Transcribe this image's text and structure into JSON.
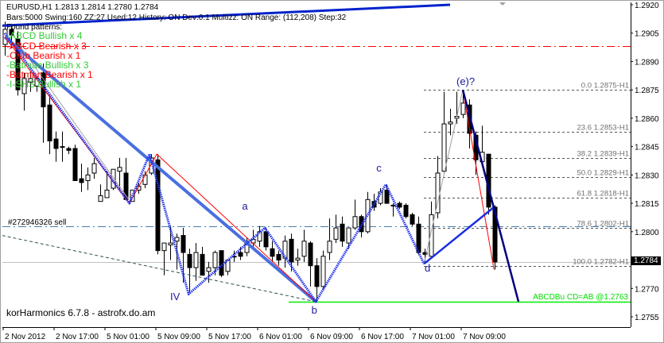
{
  "header": {
    "symbol_line": "EURUSD,H1  1.2813 1.2814 1.2780 1.2784",
    "settings_line": "Bars:5000  Swing:160  ZZ:27  Used:12  History: ON Dev:0.1  Multizz: ON  Range: (112,208)  Step:32"
  },
  "patterns": {
    "title": "Found patterns:",
    "items": [
      {
        "label": "-ABCD Bullish x 4",
        "color": "#33cc33"
      },
      {
        "label": "-ABCD Bearish x 3",
        "color": "#ff0000"
      },
      {
        "label": "-Crab Bearish x 1",
        "color": "#ff0000"
      },
      {
        "label": "-Batman Bullish x 3",
        "color": "#33cc33"
      },
      {
        "label": "-Batman Bearish x 1",
        "color": "#ff0000"
      },
      {
        "label": "-I-SHS Bullish x 1",
        "color": "#33cc33"
      }
    ]
  },
  "order_label": "#272946326 sell",
  "brand": "korHarmonics 6.7.8 - astrofx.do.am",
  "wave_labels": {
    "a": "a",
    "iv": "IV",
    "b": "b",
    "c": "c",
    "d": "d",
    "e": "(e)?"
  },
  "target_label": "ABCDBu CD=AB   @1.2763",
  "current_price": "1.2784",
  "chart_data": {
    "type": "candlestick",
    "symbol": "EURUSD",
    "timeframe": "H1",
    "ylim": [
      1.2752,
      1.2927
    ],
    "y_ticks": [
      "1.2920",
      "1.2905",
      "1.2890",
      "1.2875",
      "1.2860",
      "1.2845",
      "1.2830",
      "1.2815",
      "1.2800",
      "1.2770",
      "1.2755"
    ],
    "x_ticks": [
      {
        "bar": 0,
        "label": "2 Nov 2012"
      },
      {
        "bar": 8,
        "label": "2 Nov 17:00"
      },
      {
        "bar": 16,
        "label": "5 Nov 01:00"
      },
      {
        "bar": 24,
        "label": "5 Nov 09:00"
      },
      {
        "bar": 32,
        "label": "5 Nov 17:00"
      },
      {
        "bar": 40,
        "label": "6 Nov 01:00"
      },
      {
        "bar": 48,
        "label": "6 Nov 09:00"
      },
      {
        "bar": 56,
        "label": "6 Nov 17:00"
      },
      {
        "bar": 64,
        "label": "7 Nov 01:00"
      },
      {
        "bar": 72,
        "label": "7 Nov 09:00"
      }
    ],
    "ohlc": [
      [
        1.2899,
        1.2911,
        1.2893,
        1.2907
      ],
      [
        1.2907,
        1.291,
        1.2897,
        1.2904
      ],
      [
        1.2902,
        1.2906,
        1.2872,
        1.2875
      ],
      [
        1.2873,
        1.2884,
        1.2864,
        1.2881
      ],
      [
        1.2879,
        1.2885,
        1.2874,
        1.2881
      ],
      [
        1.2877,
        1.2882,
        1.2874,
        1.2881
      ],
      [
        1.2884,
        1.2889,
        1.2847,
        1.2866
      ],
      [
        1.2867,
        1.2872,
        1.2841,
        1.2848
      ],
      [
        1.2849,
        1.2853,
        1.2837,
        1.2844
      ],
      [
        1.2845,
        1.2853,
        1.2837,
        1.2845
      ],
      [
        1.2844,
        1.2845,
        1.2841,
        1.2843
      ],
      [
        1.2844,
        1.2846,
        1.2827,
        1.2827
      ],
      [
        1.2828,
        1.2836,
        1.2821,
        1.2826
      ],
      [
        1.2827,
        1.2834,
        1.2822,
        1.283
      ],
      [
        1.2831,
        1.2839,
        1.2828,
        1.2836
      ],
      [
        1.2816,
        1.2825,
        1.2816,
        1.2819
      ],
      [
        1.2818,
        1.2832,
        1.2818,
        1.2822
      ],
      [
        1.2823,
        1.2833,
        1.2822,
        1.2833
      ],
      [
        1.2832,
        1.2839,
        1.2822,
        1.2834
      ],
      [
        1.2831,
        1.2839,
        1.2817,
        1.2817
      ],
      [
        1.2816,
        1.2822,
        1.2816,
        1.2822
      ],
      [
        1.2822,
        1.2826,
        1.282,
        1.2824
      ],
      [
        1.2825,
        1.2832,
        1.2823,
        1.283
      ],
      [
        1.2831,
        1.2841,
        1.283,
        1.2839
      ],
      [
        1.2838,
        1.2841,
        1.2788,
        1.279
      ],
      [
        1.279,
        1.2794,
        1.2777,
        1.2794
      ],
      [
        1.2793,
        1.2803,
        1.2785,
        1.2794
      ],
      [
        1.2795,
        1.2799,
        1.278,
        1.2797
      ],
      [
        1.2798,
        1.2802,
        1.2773,
        1.2789
      ],
      [
        1.2788,
        1.2791,
        1.2768,
        1.2781
      ],
      [
        1.2781,
        1.2794,
        1.2774,
        1.2789
      ],
      [
        1.2788,
        1.2792,
        1.2777,
        1.2777
      ],
      [
        1.2779,
        1.2784,
        1.2773,
        1.2781
      ],
      [
        1.2781,
        1.279,
        1.2777,
        1.2789
      ],
      [
        1.279,
        1.279,
        1.2776,
        1.2777
      ],
      [
        1.2779,
        1.2785,
        1.2777,
        1.2785
      ],
      [
        1.2787,
        1.279,
        1.2784,
        1.2787
      ],
      [
        1.2789,
        1.2792,
        1.2785,
        1.2787
      ],
      [
        1.2789,
        1.2797,
        1.2787,
        1.2795
      ],
      [
        1.2794,
        1.2801,
        1.2791,
        1.2796
      ],
      [
        1.2795,
        1.2803,
        1.2792,
        1.28
      ],
      [
        1.28,
        1.2802,
        1.279,
        1.2792
      ],
      [
        1.2791,
        1.2795,
        1.2784,
        1.2787
      ],
      [
        1.2788,
        1.279,
        1.2782,
        1.2785
      ],
      [
        1.2786,
        1.2798,
        1.2781,
        1.2795
      ],
      [
        1.2796,
        1.2799,
        1.2779,
        1.2784
      ],
      [
        1.2785,
        1.2791,
        1.2782,
        1.2786
      ],
      [
        1.2787,
        1.2801,
        1.2784,
        1.2795
      ],
      [
        1.2794,
        1.2795,
        1.2771,
        1.2782
      ],
      [
        1.2782,
        1.2786,
        1.2763,
        1.2771
      ],
      [
        1.2771,
        1.279,
        1.2769,
        1.2787
      ],
      [
        1.2789,
        1.2807,
        1.2785,
        1.2795
      ],
      [
        1.2796,
        1.2809,
        1.2794,
        1.2802
      ],
      [
        1.2804,
        1.2808,
        1.2792,
        1.2795
      ],
      [
        1.2794,
        1.2802,
        1.2791,
        1.2802
      ],
      [
        1.2802,
        1.2817,
        1.2801,
        1.2808
      ],
      [
        1.2808,
        1.2809,
        1.2797,
        1.28
      ],
      [
        1.28,
        1.2821,
        1.2799,
        1.2817
      ],
      [
        1.2816,
        1.282,
        1.2811,
        1.2813
      ],
      [
        1.2815,
        1.2823,
        1.2814,
        1.2821
      ],
      [
        1.2822,
        1.2825,
        1.2815,
        1.2815
      ],
      [
        1.2814,
        1.2815,
        1.2808,
        1.2814
      ],
      [
        1.2815,
        1.2816,
        1.2812,
        1.2813
      ],
      [
        1.2814,
        1.2815,
        1.2807,
        1.2808
      ],
      [
        1.2809,
        1.281,
        1.2803,
        1.2804
      ],
      [
        1.2804,
        1.2808,
        1.2788,
        1.2789
      ],
      [
        1.2789,
        1.2791,
        1.2783,
        1.2788
      ],
      [
        1.2787,
        1.2816,
        1.2787,
        1.2809
      ],
      [
        1.281,
        1.284,
        1.2807,
        1.2831
      ],
      [
        1.2832,
        1.2874,
        1.2831,
        1.2857
      ],
      [
        1.2857,
        1.2865,
        1.2851,
        1.2858
      ],
      [
        1.286,
        1.2874,
        1.2857,
        1.2861
      ],
      [
        1.2862,
        1.2875,
        1.286,
        1.2868
      ],
      [
        1.2867,
        1.287,
        1.2844,
        1.2852
      ],
      [
        1.2851,
        1.2853,
        1.283,
        1.2838
      ],
      [
        1.2837,
        1.2856,
        1.2835,
        1.2842
      ],
      [
        1.2841,
        1.2841,
        1.2809,
        1.2813
      ],
      [
        1.2813,
        1.2814,
        1.278,
        1.2784
      ]
    ],
    "fib_levels": [
      {
        "label": "0.0 1.2875-H1",
        "price": 1.2875
      },
      {
        "label": "23.6 1.2853-H1",
        "price": 1.2853
      },
      {
        "label": "38.2 1.2839-H1",
        "price": 1.2839
      },
      {
        "label": "50.0 1.2829-H1",
        "price": 1.2829
      },
      {
        "label": "61.8 1.2818-H1",
        "price": 1.2818
      },
      {
        "label": "78.6 1.2802-H1",
        "price": 1.2802
      },
      {
        "label": "100.0 1.2782-H1",
        "price": 1.2782
      }
    ],
    "horizontal_lines": [
      {
        "name": "red-dashdot-level",
        "price": 1.2898,
        "color": "#ff0000",
        "style": "dashdot"
      },
      {
        "name": "sell-order-level",
        "price": 1.2803,
        "color": "#4a7aa8",
        "style": "dashdot"
      },
      {
        "name": "current-price-line",
        "price": 1.2784,
        "color": "#c0c0c0",
        "style": "solid"
      },
      {
        "name": "target-level",
        "price": 1.2763,
        "color": "#00ee00",
        "style": "solid",
        "from_bar": 45
      }
    ],
    "overlays": [
      {
        "name": "top-trendline",
        "color": "#0022cc",
        "width": 3,
        "points": [
          [
            -0.4,
            1.2909
          ],
          [
            70,
            1.292
          ]
        ]
      },
      {
        "name": "long-trendline",
        "color": "#4a6fe0",
        "width": 4,
        "points": [
          [
            0,
            1.2903
          ],
          [
            48.9,
            1.2763
          ]
        ]
      },
      {
        "name": "lower-dashed-trendline",
        "color": "#2f5050",
        "width": 1,
        "dash": "4,3",
        "points": [
          [
            -0.4,
            1.2798
          ],
          [
            48.9,
            1.2763
          ]
        ]
      },
      {
        "name": "gray-line-1",
        "color": "#a0a0a0",
        "width": 1,
        "points": [
          [
            2,
            1.29
          ],
          [
            19.5,
            1.2817
          ]
        ]
      },
      {
        "name": "gray-line-2",
        "color": "#a0a0a0",
        "width": 1,
        "points": [
          [
            65.9,
            1.2783
          ],
          [
            72,
            1.2875
          ]
        ]
      },
      {
        "name": "red-pattern-1",
        "color": "#ff0000",
        "width": 1,
        "points": [
          [
            0,
            1.2903
          ],
          [
            19.6,
            1.2815
          ],
          [
            23.9,
            1.2841
          ],
          [
            48.9,
            1.2763
          ]
        ]
      },
      {
        "name": "red-pattern-2",
        "color": "#ff0000",
        "width": 1,
        "points": [
          [
            72,
            1.2875
          ],
          [
            76.9,
            1.278
          ]
        ]
      },
      {
        "name": "zigzag-dotted",
        "color": "#2233ee",
        "width": 3,
        "dash": "1.5,1",
        "points": [
          [
            0,
            1.2905
          ],
          [
            19.6,
            1.2815
          ],
          [
            22.75,
            1.2841
          ],
          [
            28.9,
            1.2767
          ],
          [
            40.9,
            1.2802
          ],
          [
            48.9,
            1.2763
          ],
          [
            59.9,
            1.2825
          ],
          [
            65.9,
            1.2783
          ]
        ]
      },
      {
        "name": "blue-solid-leg",
        "color": "#1a2ee0",
        "width": 2.5,
        "points": [
          [
            65.9,
            1.2783
          ],
          [
            76.9,
            1.2813
          ]
        ]
      },
      {
        "name": "navy-projection",
        "color": "#000080",
        "width": 2.5,
        "points": [
          [
            72,
            1.2875
          ],
          [
            80.75,
            1.2763
          ]
        ]
      }
    ],
    "wave_points": [
      {
        "key": "a",
        "bar": 37.8,
        "price": 1.2813
      },
      {
        "key": "iv",
        "bar": 26.5,
        "price": 1.2765
      },
      {
        "key": "b",
        "bar": 48.7,
        "price": 1.2758
      },
      {
        "key": "c",
        "bar": 58.9,
        "price": 1.2833
      },
      {
        "key": "d",
        "bar": 66.5,
        "price": 1.278
      },
      {
        "key": "e",
        "bar": 71.5,
        "price": 1.2879
      }
    ],
    "colors": {
      "bull_body": "#ffffff",
      "bear_body": "#000000",
      "wick": "#000000",
      "grid": "none"
    }
  }
}
